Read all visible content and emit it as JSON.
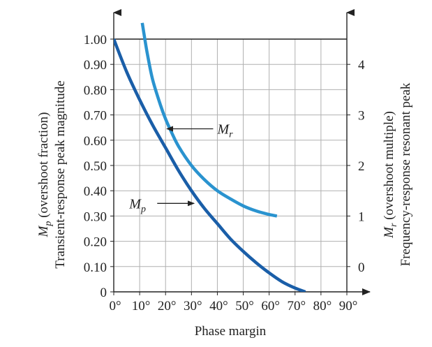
{
  "chart_data": {
    "type": "line",
    "xlabel": "Phase margin",
    "ylabel_left_line1": "(overshoot fraction)",
    "ylabel_left_line2": "Transient-response peak magnitude",
    "ylabel_left_symbol": "M",
    "ylabel_left_symbol_sub": "p",
    "ylabel_right_line1": "(overshoot multiple)",
    "ylabel_right_line2": "Frequency-response resonant peak",
    "ylabel_right_symbol": "M",
    "ylabel_right_symbol_sub": "r",
    "xlim": [
      0,
      90
    ],
    "ylim_left": [
      0,
      1.0
    ],
    "ylim_right": [
      -0.5,
      4.5
    ],
    "grid": true,
    "x_ticks": [
      0,
      10,
      20,
      30,
      40,
      50,
      60,
      70,
      80,
      90
    ],
    "x_tick_labels": [
      "0°",
      "10°",
      "20°",
      "30°",
      "40°",
      "50°",
      "60°",
      "70°",
      "80°",
      "90°"
    ],
    "y_left_ticks": [
      0,
      0.1,
      0.2,
      0.3,
      0.4,
      0.5,
      0.6,
      0.7,
      0.8,
      0.9,
      1.0
    ],
    "y_left_tick_labels": [
      "0",
      "0.10",
      "0.20",
      "0.30",
      "0.40",
      "0.50",
      "0.60",
      "0.70",
      "0.80",
      "0.90",
      "1.00"
    ],
    "y_right_ticks": [
      0,
      1,
      2,
      3,
      4
    ],
    "y_right_tick_labels": [
      "0",
      "1",
      "2",
      "3",
      "4"
    ],
    "series": [
      {
        "name": "Mp",
        "axis": "left",
        "color": "#1a5ea8",
        "x": [
          0,
          5,
          10,
          15,
          20,
          25,
          30,
          35,
          40,
          45,
          50,
          55,
          60,
          65,
          70,
          74
        ],
        "y": [
          1.0,
          0.87,
          0.76,
          0.66,
          0.57,
          0.48,
          0.4,
          0.33,
          0.27,
          0.21,
          0.16,
          0.115,
          0.075,
          0.04,
          0.015,
          0.0
        ]
      },
      {
        "name": "Mr",
        "axis": "right",
        "color": "#2a93cf",
        "x": [
          11,
          12,
          13,
          15,
          18,
          20,
          22,
          25,
          30,
          35,
          40,
          45,
          50,
          55,
          60,
          63
        ],
        "y": [
          4.82,
          4.5,
          4.2,
          3.7,
          3.2,
          2.92,
          2.69,
          2.38,
          2.0,
          1.72,
          1.5,
          1.34,
          1.2,
          1.1,
          1.03,
          1.0
        ]
      }
    ],
    "annotations": [
      {
        "series": "Mr",
        "text": "M",
        "sub": "r",
        "text_x": 40,
        "text_y_left": 0.645,
        "arrow_to_x": 20.5,
        "arrow_to_y_left": 0.645
      },
      {
        "series": "Mp",
        "text": "M",
        "sub": "p",
        "text_x": 6,
        "text_y_left": 0.35,
        "arrow_to_x": 31,
        "arrow_to_y_left": 0.35
      }
    ]
  }
}
